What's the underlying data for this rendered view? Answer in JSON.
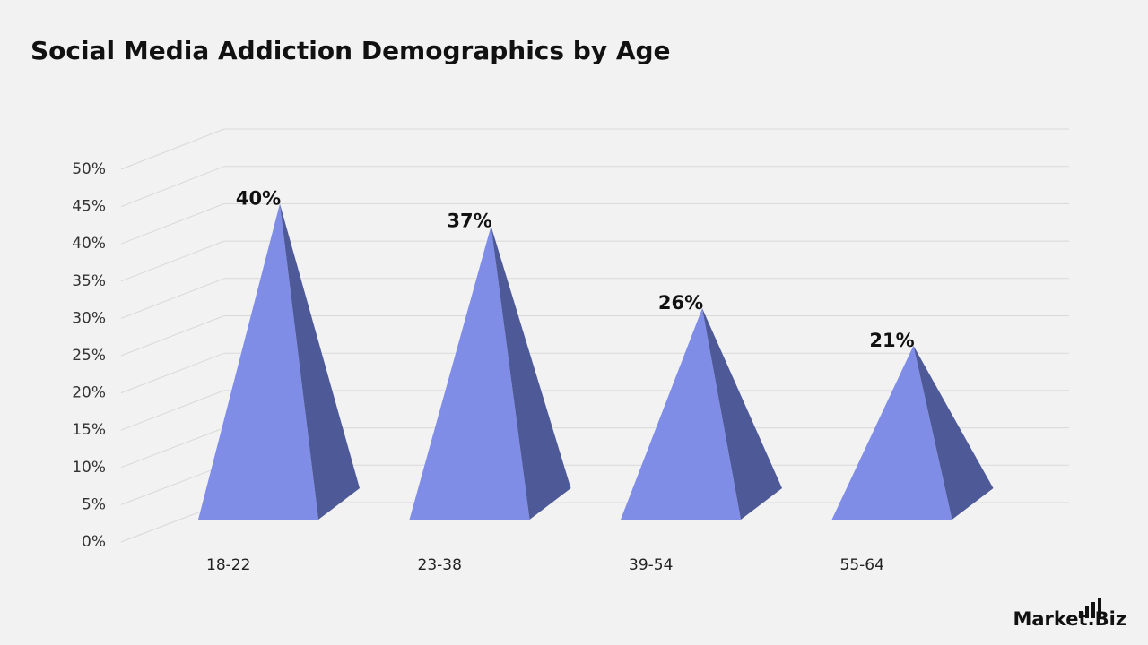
{
  "chart_data": {
    "type": "pyramid",
    "title": "Social Media Addiction Demographics by Age",
    "categories": [
      "18-22",
      "23-38",
      "39-54",
      "55-64"
    ],
    "values": [
      40,
      37,
      26,
      21
    ],
    "value_labels": [
      "40%",
      "37%",
      "26%",
      "21%"
    ],
    "color": "#7f8de6",
    "side_color": "#4e5a98",
    "ylim": [
      0,
      50
    ],
    "yticks": [
      {
        "value": 0,
        "label": "0%"
      },
      {
        "value": 5,
        "label": "5%"
      },
      {
        "value": 10,
        "label": "10%"
      },
      {
        "value": 15,
        "label": "15%"
      },
      {
        "value": 20,
        "label": "20%"
      },
      {
        "value": 25,
        "label": "25%"
      },
      {
        "value": 30,
        "label": "30%"
      },
      {
        "value": 35,
        "label": "35%"
      },
      {
        "value": 40,
        "label": "40%"
      },
      {
        "value": 45,
        "label": "45%"
      },
      {
        "value": 50,
        "label": "50%"
      }
    ],
    "grid": true,
    "brand": "Market.Biz"
  }
}
